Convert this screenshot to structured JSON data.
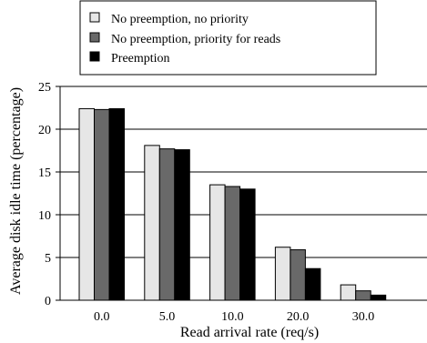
{
  "chart_data": {
    "type": "bar",
    "title": "",
    "xlabel": "Read arrival rate (req/s)",
    "ylabel": "Average disk idle time (percentage)",
    "categories": [
      "0.0",
      "5.0",
      "10.0",
      "20.0",
      "30.0"
    ],
    "ylim": [
      0,
      25
    ],
    "yticks": [
      "0",
      "5",
      "10",
      "15",
      "20",
      "25"
    ],
    "grid": "horizontal",
    "legend_position": "top",
    "series": [
      {
        "name": "No preemption, no priority",
        "color": "#e6e6e6",
        "values": [
          22.4,
          18.1,
          13.5,
          6.2,
          1.8
        ]
      },
      {
        "name": "No preemption, priority for reads",
        "color": "#696969",
        "values": [
          22.3,
          17.7,
          13.3,
          5.9,
          1.1
        ]
      },
      {
        "name": "Preemption",
        "color": "#000000",
        "values": [
          22.4,
          17.6,
          13.0,
          3.7,
          0.6
        ]
      }
    ]
  }
}
